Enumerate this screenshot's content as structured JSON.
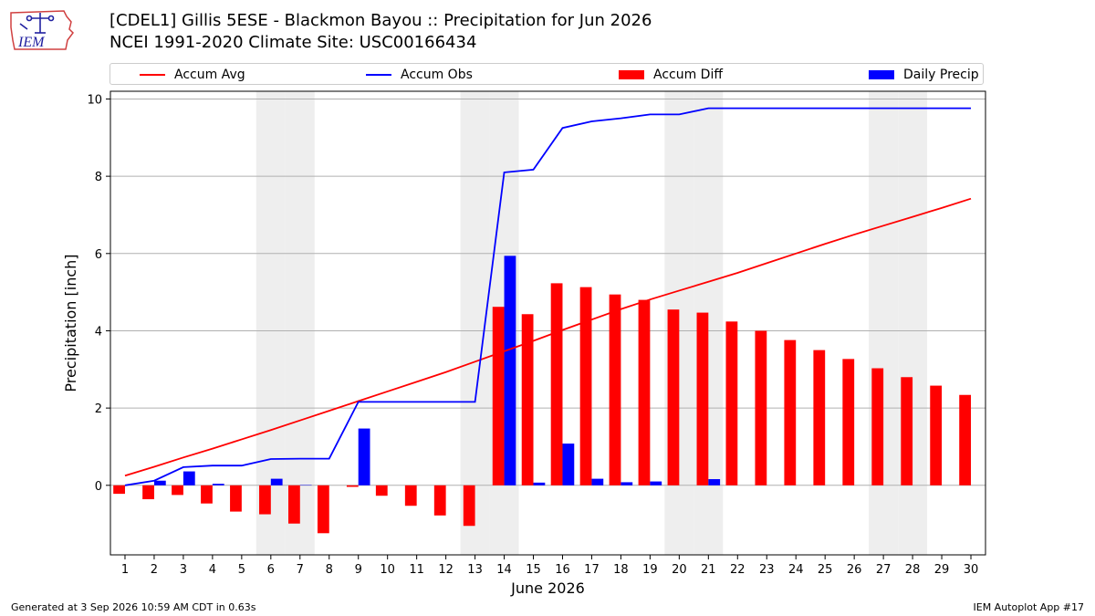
{
  "title": {
    "line1": "[CDEL1] Gillis 5ESE - Blackmon Bayou :: Precipitation for Jun 2026",
    "line2": "NCEI 1991-2020 Climate Site: USC00166434"
  },
  "logo": {
    "text": "IEM",
    "icon": "iem-iowa-logo-icon"
  },
  "footer": {
    "left": "Generated at 3 Sep 2026 10:59 AM CDT in 0.63s",
    "right": "IEM Autoplot App #17"
  },
  "colors": {
    "avg": "#ff0000",
    "obs": "#0000ff",
    "diff": "#ff0000",
    "daily": "#0000ff",
    "weekend": "#eeeeee"
  },
  "chart_data": {
    "type": "bar",
    "xlabel": "June 2026",
    "ylabel": "Precipitation [inch]",
    "xlim": [
      0.5,
      30.5
    ],
    "ylim": [
      -1.8,
      10.2
    ],
    "yticks": [
      0,
      2,
      4,
      6,
      8,
      10
    ],
    "grid": "horizontal",
    "legend_position": "top",
    "legend": [
      "Accum Avg",
      "Accum Obs",
      "Accum Diff",
      "Daily Precip"
    ],
    "shaded_days": [
      6,
      7,
      13,
      14,
      20,
      21,
      27,
      28
    ],
    "days": [
      1,
      2,
      3,
      4,
      5,
      6,
      7,
      8,
      9,
      10,
      11,
      12,
      13,
      14,
      15,
      16,
      17,
      18,
      19,
      20,
      21,
      22,
      23,
      24,
      25,
      26,
      27,
      28,
      29,
      30
    ],
    "series": [
      {
        "name": "Accum Avg",
        "kind": "line",
        "values": [
          0.25,
          0.48,
          0.72,
          0.95,
          1.19,
          1.43,
          1.68,
          1.93,
          2.18,
          2.43,
          2.68,
          2.93,
          3.2,
          3.47,
          3.74,
          4.02,
          4.29,
          4.56,
          4.81,
          5.04,
          5.27,
          5.5,
          5.75,
          6.0,
          6.25,
          6.49,
          6.72,
          6.95,
          7.18,
          7.42
        ]
      },
      {
        "name": "Accum Obs",
        "kind": "line",
        "values": [
          0.0,
          0.12,
          0.47,
          0.51,
          0.51,
          0.68,
          0.69,
          0.69,
          2.16,
          2.16,
          2.16,
          2.16,
          2.16,
          8.1,
          8.17,
          9.25,
          9.42,
          9.5,
          9.6,
          9.6,
          9.76,
          9.76,
          9.76,
          9.76,
          9.76,
          9.76,
          9.76,
          9.76,
          9.76,
          9.76
        ]
      },
      {
        "name": "Accum Diff",
        "kind": "bar",
        "values": [
          -0.22,
          -0.36,
          -0.25,
          -0.47,
          -0.68,
          -0.75,
          -0.99,
          -1.24,
          -0.04,
          -0.27,
          -0.53,
          -0.78,
          -1.05,
          4.62,
          4.43,
          5.23,
          5.13,
          4.94,
          4.8,
          4.55,
          4.47,
          4.24,
          4.0,
          3.76,
          3.5,
          3.27,
          3.03,
          2.8,
          2.58,
          2.34
        ]
      },
      {
        "name": "Daily Precip",
        "kind": "bar",
        "values": [
          0.0,
          0.12,
          0.36,
          0.04,
          0.0,
          0.17,
          0.01,
          0.0,
          1.47,
          0.0,
          0.0,
          0.0,
          0.0,
          5.94,
          0.07,
          1.08,
          0.17,
          0.08,
          0.1,
          0.0,
          0.16,
          0.0,
          0.0,
          0.0,
          0.0,
          0.0,
          0.0,
          0.0,
          0.0,
          0.0
        ]
      }
    ]
  }
}
